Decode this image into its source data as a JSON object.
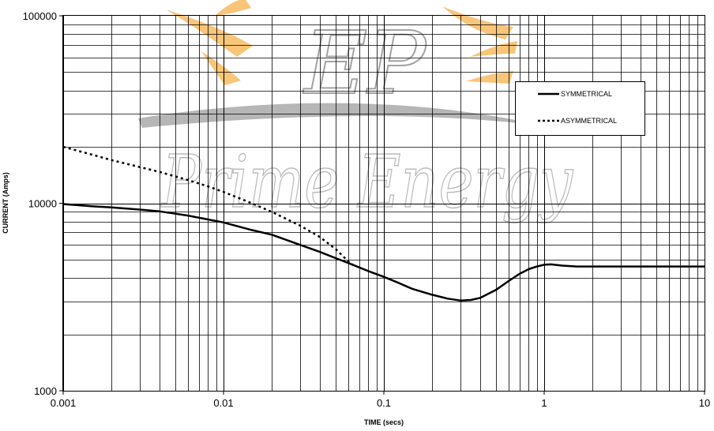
{
  "chart_data": {
    "type": "line",
    "title": "",
    "xlabel": "TIME (secs)",
    "ylabel": "CURRENT (Amps)",
    "x_scale": "log",
    "y_scale": "log",
    "xlim": [
      0.001,
      10
    ],
    "ylim": [
      1000,
      100000
    ],
    "x_ticks": [
      0.001,
      0.01,
      0.1,
      1,
      10
    ],
    "x_tick_labels": [
      "0.001",
      "0.01",
      "0.1",
      "1",
      "10"
    ],
    "y_ticks": [
      1000,
      10000,
      100000
    ],
    "y_tick_labels": [
      "1000",
      "10000",
      "100000"
    ],
    "grid": true,
    "legend_position": "top-right",
    "series": [
      {
        "name": "SYMMETRICAL",
        "style": "solid",
        "color": "#000000",
        "points": [
          [
            0.001,
            9900
          ],
          [
            0.0015,
            9650
          ],
          [
            0.002,
            9500
          ],
          [
            0.003,
            9250
          ],
          [
            0.004,
            9050
          ],
          [
            0.005,
            8800
          ],
          [
            0.006,
            8600
          ],
          [
            0.008,
            8200
          ],
          [
            0.01,
            7900
          ],
          [
            0.015,
            7200
          ],
          [
            0.02,
            6800
          ],
          [
            0.03,
            6000
          ],
          [
            0.04,
            5500
          ],
          [
            0.05,
            5100
          ],
          [
            0.06,
            4800
          ],
          [
            0.07,
            4550
          ],
          [
            0.08,
            4350
          ],
          [
            0.1,
            4050
          ],
          [
            0.12,
            3800
          ],
          [
            0.15,
            3500
          ],
          [
            0.2,
            3250
          ],
          [
            0.25,
            3100
          ],
          [
            0.3,
            3030
          ],
          [
            0.35,
            3050
          ],
          [
            0.4,
            3130
          ],
          [
            0.5,
            3450
          ],
          [
            0.6,
            3850
          ],
          [
            0.7,
            4200
          ],
          [
            0.8,
            4450
          ],
          [
            0.9,
            4600
          ],
          [
            1.0,
            4700
          ],
          [
            1.1,
            4720
          ],
          [
            1.3,
            4650
          ],
          [
            1.6,
            4600
          ],
          [
            2.0,
            4600
          ],
          [
            5.0,
            4600
          ],
          [
            10.0,
            4600
          ]
        ]
      },
      {
        "name": "ASYMMETRICAL",
        "style": "dotted",
        "color": "#000000",
        "points": [
          [
            0.001,
            20000
          ],
          [
            0.0015,
            18200
          ],
          [
            0.002,
            17000
          ],
          [
            0.003,
            15600
          ],
          [
            0.004,
            14700
          ],
          [
            0.005,
            13900
          ],
          [
            0.006,
            13300
          ],
          [
            0.008,
            12300
          ],
          [
            0.01,
            11500
          ],
          [
            0.015,
            10000
          ],
          [
            0.02,
            9000
          ],
          [
            0.03,
            7600
          ],
          [
            0.04,
            6600
          ],
          [
            0.05,
            5700
          ],
          [
            0.06,
            4900
          ],
          [
            0.065,
            4650
          ]
        ]
      }
    ]
  },
  "legend": {
    "items": [
      {
        "label": "SYMMETRICAL",
        "style": "solid"
      },
      {
        "label": "ASYMMETRICAL",
        "style": "dotted"
      }
    ]
  },
  "watermark": {
    "monogram": "EP",
    "text": "Prime Energy",
    "accent_color": "#f7a93a",
    "swoosh_color": "#9a9a9a"
  }
}
